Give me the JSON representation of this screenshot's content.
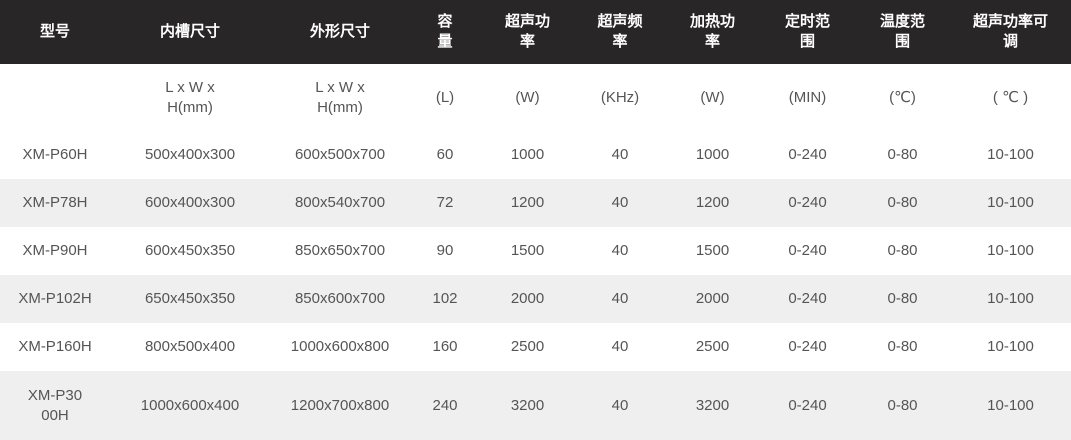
{
  "colors": {
    "header_bg": "#282627",
    "header_text": "#ffffff",
    "stripe": "#efefef",
    "text": "#555555"
  },
  "table": {
    "headers": [
      "型号",
      "内槽尺寸",
      "外形尺寸",
      "容\n量",
      "超声功\n率",
      "超声频\n率",
      "加热功\n率",
      "定时范\n围",
      "温度范\n围",
      "超声功率可\n调"
    ],
    "units": [
      "",
      "L x W x H(mm)",
      "L x W x H(mm)",
      "(L)",
      "(W)",
      "(KHz)",
      "(W)",
      "(MIN)",
      "(℃)",
      "( ℃ )"
    ],
    "rows": [
      [
        "XM-P60H",
        "500x400x300",
        "600x500x700",
        "60",
        "1000",
        "40",
        "1000",
        "0-240",
        "0-80",
        "10-100"
      ],
      [
        "XM-P78H",
        "600x400x300",
        "800x540x700",
        "72",
        "1200",
        "40",
        "1200",
        "0-240",
        "0-80",
        "10-100"
      ],
      [
        "XM-P90H",
        "600x450x350",
        "850x650x700",
        "90",
        "1500",
        "40",
        "1500",
        "0-240",
        "0-80",
        "10-100"
      ],
      [
        "XM-P102H",
        "650x450x350",
        "850x600x700",
        "102",
        "2000",
        "40",
        "2000",
        "0-240",
        "0-80",
        "10-100"
      ],
      [
        "XM-P160H",
        "800x500x400",
        "1000x600x800",
        "160",
        "2500",
        "40",
        "2500",
        "0-240",
        "0-80",
        "10-100"
      ],
      [
        "XM-P3000H",
        "1000x600x400",
        "1200x700x800",
        "240",
        "3200",
        "40",
        "3200",
        "0-240",
        "0-80",
        "10-100"
      ]
    ]
  }
}
